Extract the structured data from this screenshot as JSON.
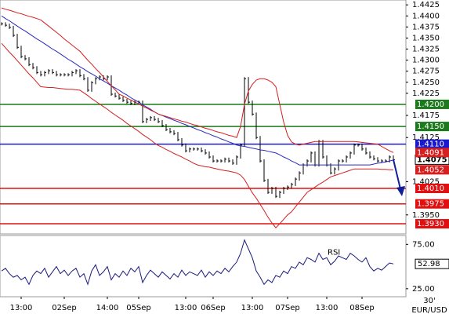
{
  "chart_data": {
    "type": "ohlc",
    "symbol": "EUR/USD",
    "timeframe": "30'",
    "categories": [
      null,
      null,
      null,
      null,
      null,
      "13:00",
      null,
      null,
      null,
      null,
      null,
      null,
      null,
      null,
      null,
      null,
      "02Sep",
      null,
      null,
      null,
      null,
      null,
      null,
      null,
      null,
      null,
      null,
      "14:00",
      null,
      null,
      null,
      null,
      null,
      null,
      null,
      "05Sep",
      null,
      null,
      null,
      null,
      null,
      null,
      null,
      null,
      null,
      null,
      null,
      "13:00",
      null,
      null,
      null,
      null,
      null,
      null,
      "06Sep",
      null,
      null,
      null,
      null,
      null,
      null,
      null,
      null,
      null,
      "13:00",
      null,
      null,
      null,
      null,
      null,
      null,
      null,
      null,
      "07Sep",
      null,
      null,
      null,
      null,
      null,
      null,
      null,
      null,
      null,
      "13:00",
      null,
      null,
      null,
      null,
      null,
      null,
      null,
      null,
      "08Sep",
      null,
      null,
      null,
      null,
      null,
      null,
      null,
      null
    ],
    "ylim": [
      1.3907,
      1.4436
    ],
    "yticks": [
      1.4425,
      {
        "value": 1.44,
        "label": "1.4400"
      },
      1.4375,
      {
        "value": 1.435,
        "label": "1.4350"
      },
      1.4325,
      {
        "value": 1.43,
        "label": "1.4300"
      },
      1.4275,
      {
        "value": 1.425,
        "label": "1.4250"
      },
      1.4225,
      1.4175,
      1.4125,
      1.4025,
      {
        "value": 1.395,
        "label": "1.3950"
      }
    ],
    "series": [
      {
        "name": "Close",
        "color": "#000000",
        "values": [
          1.4382,
          1.4379,
          1.4374,
          1.4356,
          1.4329,
          1.4308,
          1.4303,
          1.429,
          1.4283,
          1.4272,
          1.4267,
          1.4272,
          1.4276,
          1.4272,
          1.4267,
          1.4267,
          1.4267,
          1.4267,
          1.4272,
          1.4276,
          1.4265,
          1.4258,
          1.4232,
          1.4249,
          1.4258,
          1.4262,
          1.4258,
          1.4262,
          1.4223,
          1.4219,
          1.4214,
          1.4209,
          1.4205,
          1.4202,
          1.4205,
          1.4205,
          1.4161,
          1.4166,
          1.417,
          1.4166,
          1.4161,
          1.4152,
          1.4143,
          1.4138,
          1.4134,
          1.412,
          1.4108,
          1.4095,
          1.4099,
          1.4099,
          1.4099,
          1.4095,
          1.409,
          1.4081,
          1.4072,
          1.4072,
          1.4072,
          1.4076,
          1.4072,
          1.4067,
          1.4081,
          1.4108,
          1.4258,
          1.4205,
          1.4178,
          1.4125,
          1.4072,
          1.4028,
          1.4001,
          1.401,
          1.3992,
          1.4001,
          1.401,
          1.4013,
          1.4019,
          1.4031,
          1.4045,
          1.4063,
          1.4072,
          1.409,
          1.4063,
          1.4116,
          1.4081,
          1.4063,
          1.4045,
          1.4054,
          1.4072,
          1.4072,
          1.4081,
          1.409,
          1.4108,
          1.4108,
          1.4099,
          1.409,
          1.4081,
          1.4077,
          1.4072,
          1.4072,
          1.4072,
          1.4081,
          1.4075
        ]
      },
      {
        "name": "MA",
        "color": "#2a2ac0",
        "values": [
          1.44,
          1.4394,
          1.4389,
          1.4383,
          1.4377,
          1.4371,
          1.4366,
          1.436,
          1.4354,
          1.4348,
          1.4343,
          1.4337,
          1.4331,
          1.4325,
          1.432,
          1.4314,
          1.4308,
          1.4302,
          1.4297,
          1.4291,
          1.4285,
          1.428,
          1.4274,
          1.4269,
          1.4264,
          1.4258,
          1.4253,
          1.4248,
          1.4242,
          1.4237,
          1.4232,
          1.4226,
          1.4221,
          1.4215,
          1.421,
          1.4205,
          1.4199,
          1.4194,
          1.4189,
          1.4183,
          1.4178,
          1.4175,
          1.4171,
          1.4168,
          1.4164,
          1.4161,
          1.4157,
          1.4154,
          1.415,
          1.4147,
          1.4143,
          1.414,
          1.4136,
          1.4133,
          1.4129,
          1.4126,
          1.4122,
          1.4119,
          1.4115,
          1.4112,
          1.4108,
          1.4106,
          1.4105,
          1.4103,
          1.4101,
          1.4099,
          1.4097,
          1.4096,
          1.4094,
          1.4092,
          1.409,
          1.4086,
          1.4081,
          1.4077,
          1.4072,
          1.4068,
          1.4063,
          1.4063,
          1.4063,
          1.4063,
          1.4063,
          1.4063,
          1.4063,
          1.4063,
          1.4063,
          1.4063,
          1.4063,
          1.4063,
          1.4063,
          1.4063,
          1.4063,
          1.4063,
          1.4063,
          1.4063,
          1.4063,
          1.4065,
          1.4067,
          1.4068,
          1.407,
          1.4072,
          1.4074
        ]
      },
      {
        "name": "Upper",
        "color": "#d42020",
        "values": [
          1.4418,
          1.4415,
          1.4413,
          1.441,
          1.4407,
          1.4405,
          1.4402,
          1.4399,
          1.4397,
          1.4394,
          1.4391,
          1.4384,
          1.4377,
          1.437,
          1.4363,
          1.4356,
          1.4348,
          1.4341,
          1.4334,
          1.4327,
          1.432,
          1.431,
          1.43,
          1.4291,
          1.4281,
          1.4272,
          1.4262,
          1.4252,
          1.4242,
          1.4233,
          1.4223,
          1.4219,
          1.4214,
          1.421,
          1.4205,
          1.4201,
          1.4196,
          1.4192,
          1.4187,
          1.4183,
          1.4178,
          1.4175,
          1.4173,
          1.417,
          1.4167,
          1.4165,
          1.4162,
          1.416,
          1.4157,
          1.4154,
          1.4152,
          1.4149,
          1.4146,
          1.4144,
          1.4141,
          1.4138,
          1.4136,
          1.4133,
          1.413,
          1.4128,
          1.4125,
          1.415,
          1.42,
          1.423,
          1.4245,
          1.4255,
          1.4258,
          1.4258,
          1.4255,
          1.425,
          1.424,
          1.42,
          1.416,
          1.413,
          1.4115,
          1.411,
          1.4108,
          1.411,
          1.4112,
          1.4114,
          1.4116,
          1.4116,
          1.4116,
          1.4116,
          1.4116,
          1.4116,
          1.4116,
          1.4116,
          1.4116,
          1.4116,
          1.4116,
          1.4115,
          1.4114,
          1.4113,
          1.4112,
          1.4111,
          1.411,
          1.4105,
          1.41,
          1.4095,
          1.4091
        ]
      },
      {
        "name": "Lower",
        "color": "#d42020",
        "values": [
          1.4338,
          1.4328,
          1.4318,
          1.4309,
          1.4299,
          1.4289,
          1.4279,
          1.4269,
          1.426,
          1.425,
          1.424,
          1.4239,
          1.4238,
          1.4238,
          1.4237,
          1.4236,
          1.4235,
          1.4234,
          1.4234,
          1.4233,
          1.4232,
          1.4226,
          1.422,
          1.4213,
          1.4207,
          1.4201,
          1.4195,
          1.4189,
          1.4182,
          1.4176,
          1.417,
          1.4164,
          1.4157,
          1.4151,
          1.4145,
          1.4139,
          1.4132,
          1.4126,
          1.412,
          1.4113,
          1.4107,
          1.4103,
          1.4098,
          1.4094,
          1.4089,
          1.4085,
          1.4081,
          1.4076,
          1.4072,
          1.4067,
          1.4063,
          1.4061,
          1.4059,
          1.4058,
          1.4056,
          1.4054,
          1.4052,
          1.405,
          1.4049,
          1.4047,
          1.4045,
          1.404,
          1.403,
          1.4015,
          1.4,
          1.3988,
          1.3974,
          1.396,
          1.3945,
          1.3932,
          1.3921,
          1.393,
          1.394,
          1.395,
          1.3957,
          1.3968,
          1.3979,
          1.399,
          1.4001,
          1.4007,
          1.4013,
          1.4019,
          1.4024,
          1.403,
          1.4036,
          1.4039,
          1.4042,
          1.4045,
          1.4048,
          1.4051,
          1.4054,
          1.4054,
          1.4054,
          1.4054,
          1.4054,
          1.4054,
          1.4054,
          1.4053,
          1.4053,
          1.4052,
          1.4052
        ]
      }
    ],
    "levels": [
      {
        "value": 1.42,
        "label": "1.4200",
        "color": "#1c7a1c"
      },
      {
        "value": 1.415,
        "label": "1.4150",
        "color": "#1c7a1c"
      },
      {
        "value": 1.411,
        "label": "1.4110",
        "color": "#1a1acc"
      },
      {
        "value": 1.401,
        "label": "1.4010",
        "color": "#e01010"
      },
      {
        "value": 1.3975,
        "label": "1.3975",
        "color": "#e01010"
      },
      {
        "value": 1.393,
        "label": "1.3930",
        "color": "#e01010"
      }
    ],
    "rsi": {
      "name": "RSI",
      "color": "#1a1a80",
      "ylim": [
        16,
        85
      ],
      "yticks": [
        {
          "value": 75,
          "label": "75.00"
        },
        {
          "value": 25,
          "label": "25.00"
        }
      ],
      "values": [
        45,
        48,
        42,
        38,
        40,
        35,
        38,
        30,
        40,
        45,
        42,
        48,
        38,
        44,
        50,
        42,
        46,
        40,
        45,
        48,
        38,
        42,
        30,
        45,
        52,
        40,
        44,
        50,
        35,
        42,
        38,
        45,
        40,
        48,
        44,
        50,
        32,
        40,
        46,
        42,
        38,
        44,
        40,
        36,
        42,
        38,
        46,
        40,
        44,
        42,
        40,
        46,
        38,
        44,
        40,
        45,
        42,
        48,
        44,
        50,
        55,
        65,
        80,
        70,
        60,
        45,
        38,
        30,
        35,
        32,
        40,
        38,
        45,
        42,
        50,
        48,
        55,
        52,
        60,
        58,
        55,
        65,
        58,
        60,
        52,
        56,
        62,
        60,
        58,
        65,
        62,
        58,
        55,
        60,
        50,
        45,
        48,
        46,
        50,
        54,
        52.98
      ]
    }
  }
}
